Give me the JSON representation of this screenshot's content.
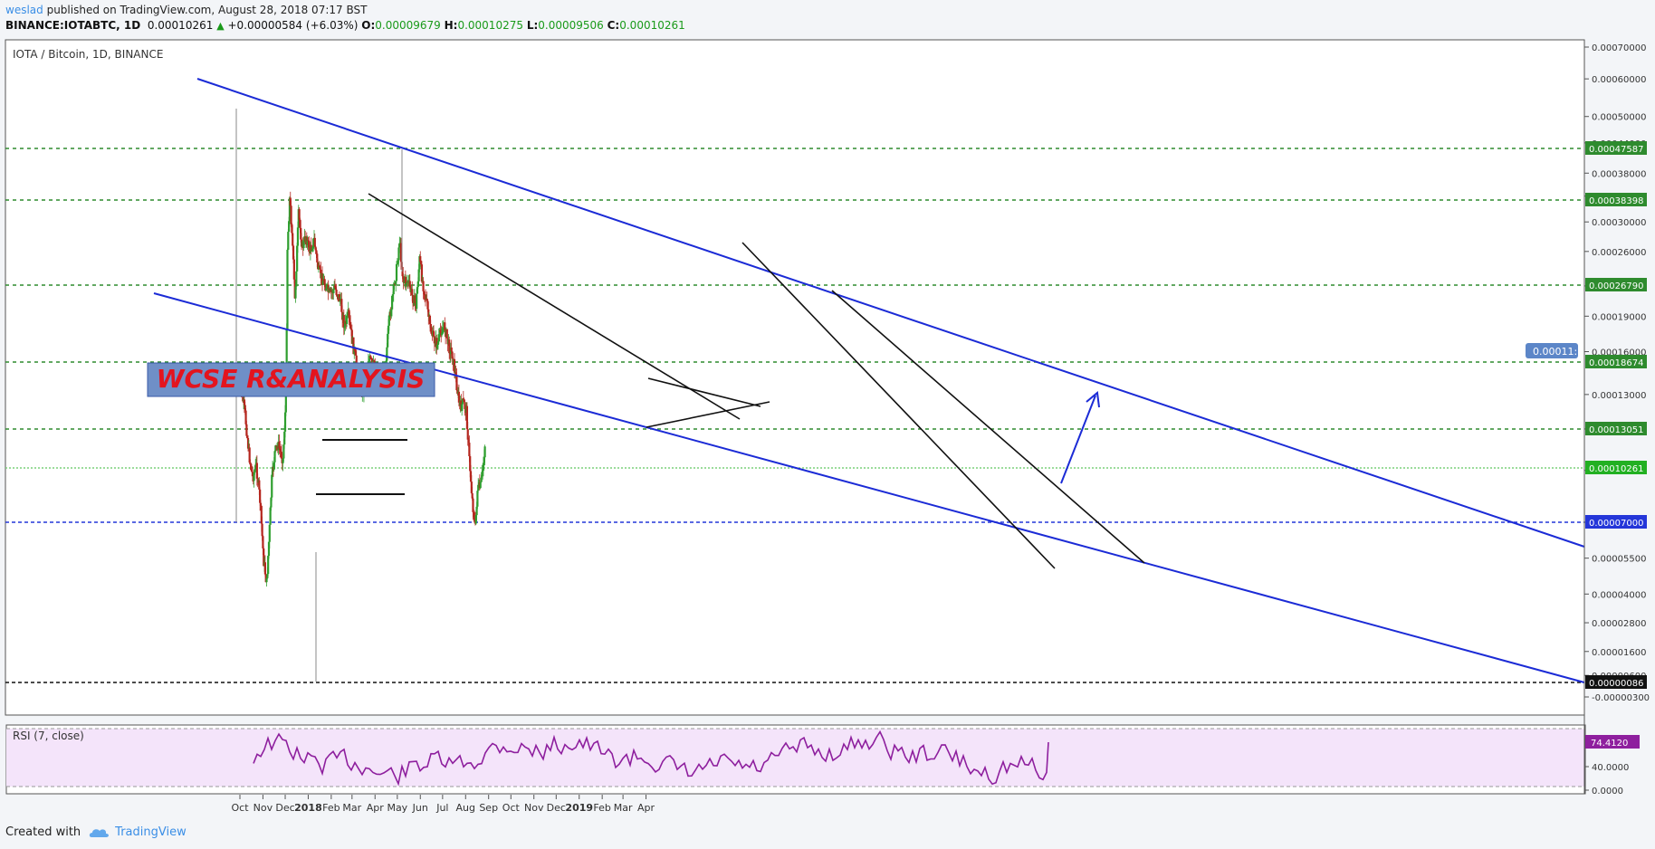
{
  "header": {
    "user": "weslad",
    "published": " published on TradingView.com, August 28, 2018 07:17 BST",
    "symbol": "BINANCE:IOTABTC, 1D",
    "price": "0.00010261",
    "change": "+0.00000584 (+6.03%)",
    "open_label": "O:",
    "open": "0.00009679",
    "high_label": "H:",
    "high": "0.00010275",
    "low_label": "L:",
    "low": "0.00009506",
    "close_label": "C:",
    "close": "0.00010261"
  },
  "footer": {
    "created_with": "Created with",
    "brand": "TradingView"
  },
  "colors": {
    "up": "#2e9e2e",
    "down": "#b5261e",
    "channel": "#1b2bd6",
    "support": "#2e8b2e",
    "rsi": "#8e1f9e",
    "rsi_bg": "#f4e4fa",
    "price_label_bg": "#1a8c1a"
  },
  "chart_data": [
    {
      "type": "candlestick",
      "title": "IOTA / Bitcoin, 1D, BINANCE",
      "x_ticks": [
        "Oct",
        "Nov",
        "Dec",
        "2018",
        "Feb",
        "Mar",
        "Apr",
        "May",
        "Jun",
        "Jul",
        "Aug",
        "Sep",
        "Oct",
        "Nov",
        "Dec",
        "2019",
        "Feb",
        "Mar",
        "Apr"
      ],
      "y_ticks": [
        "0.00070000",
        "0.00060000",
        "0.00050000",
        "0.00044000",
        "0.00038000",
        "0.00034000",
        "0.00030000",
        "0.00026000",
        "0.00022000",
        "0.00019000",
        "0.00016000",
        "0.00013000",
        "0.00011000",
        "0.00009000",
        "0.00007000",
        "0.00005500",
        "0.00004000",
        "0.00002800",
        "0.00001600",
        "0.00000600",
        "-0.00000300"
      ],
      "scale": "log",
      "price_labels": [
        {
          "value": "0.00047587",
          "style": "green"
        },
        {
          "value": "0.00038398",
          "style": "green"
        },
        {
          "value": "0.00026790",
          "style": "green"
        },
        {
          "value": "0.00018674",
          "style": "green"
        },
        {
          "value": "0.00013051",
          "style": "green"
        },
        {
          "value": "0.00010261",
          "style": "price"
        },
        {
          "value": "0.00007000",
          "style": "blue"
        },
        {
          "value": "0.00000086",
          "style": "black"
        }
      ],
      "floating_label": "0.00011:",
      "annotation": "WCSE R&ANALYSIS",
      "price_path": [
        [
          "Sep 29",
          0.000135
        ],
        [
          "Oct 3",
          0.000132
        ],
        [
          "Oct 8",
          0.000118
        ],
        [
          "Oct 13",
          9.8e-05
        ],
        [
          "Oct 18",
          8.7e-05
        ],
        [
          "Oct 23",
          9.2e-05
        ],
        [
          "Oct 28",
          7.8e-05
        ],
        [
          "Nov 2",
          5.8e-05
        ],
        [
          "Nov 6",
          5.2e-05
        ],
        [
          "Nov 10",
          6.8e-05
        ],
        [
          "Nov 13",
          8.6e-05
        ],
        [
          "Nov 17",
          9.8e-05
        ],
        [
          "Nov 21",
          0.000102
        ],
        [
          "Nov 25",
          9.8e-05
        ],
        [
          "Nov 28",
          9.5e-05
        ],
        [
          "Dec 2",
          0.000128
        ],
        [
          "Dec 4",
          0.000265
        ],
        [
          "Dec 7",
          0.000335
        ],
        [
          "Dec 10",
          0.00029
        ],
        [
          "Dec 14",
          0.000205
        ],
        [
          "Dec 19",
          0.00031
        ],
        [
          "Dec 24",
          0.000265
        ],
        [
          "Dec 29",
          0.00028
        ],
        [
          "Jan 3",
          0.00026
        ],
        [
          "Jan 9",
          0.000275
        ],
        [
          "Jan 15",
          0.000235
        ],
        [
          "Jan 22",
          0.000225
        ],
        [
          "Jan 30",
          0.00021
        ],
        [
          "Feb 6",
          0.000218
        ],
        [
          "Feb 13",
          0.000205
        ],
        [
          "Feb 19",
          0.00018
        ],
        [
          "Feb 24",
          0.00019
        ],
        [
          "Mar 1",
          0.00017
        ],
        [
          "Mar 7",
          0.00015
        ],
        [
          "Mar 13",
          0.000132
        ],
        [
          "Mar 18",
          0.000135
        ],
        [
          "Mar 23",
          0.000155
        ],
        [
          "Mar 29",
          0.00015
        ],
        [
          "Apr 4",
          0.000148
        ],
        [
          "Apr 10",
          0.00014
        ],
        [
          "Apr 15",
          0.00015
        ],
        [
          "Apr 20",
          0.000185
        ],
        [
          "Apr 25",
          0.00021
        ],
        [
          "Apr 30",
          0.000238
        ],
        [
          "May 4",
          0.000275
        ],
        [
          "May 9",
          0.000225
        ],
        [
          "May 15",
          0.000225
        ],
        [
          "May 21",
          0.00021
        ],
        [
          "May 26",
          0.0002
        ],
        [
          "May 31",
          0.00025
        ],
        [
          "Jun 4",
          0.000225
        ],
        [
          "Jun 9",
          0.000205
        ],
        [
          "Jun 14",
          0.00018
        ],
        [
          "Jun 19",
          0.00017
        ],
        [
          "Jun 24",
          0.000165
        ],
        [
          "Jun 29",
          0.000178
        ],
        [
          "Jul 4",
          0.00018
        ],
        [
          "Jul 9",
          0.000165
        ],
        [
          "Jul 14",
          0.000158
        ],
        [
          "Jul 19",
          0.00014
        ],
        [
          "Jul 24",
          0.000122
        ],
        [
          "Jul 29",
          0.000125
        ],
        [
          "Aug 2",
          0.00012
        ],
        [
          "Aug 6",
          9.5e-05
        ],
        [
          "Aug 10",
          7.8e-05
        ],
        [
          "Aug 14",
          6.8e-05
        ],
        [
          "Aug 17",
          8.2e-05
        ],
        [
          "Aug 21",
          8.3e-05
        ],
        [
          "Aug 24",
          9e-05
        ],
        [
          "Aug 27",
          0.000102
        ]
      ]
    },
    {
      "type": "line",
      "title": "RSI (7, close)",
      "y_ticks": [
        "40.0000",
        "0.0000"
      ],
      "last_value": "74.4120",
      "ylim": [
        0,
        100
      ]
    }
  ]
}
